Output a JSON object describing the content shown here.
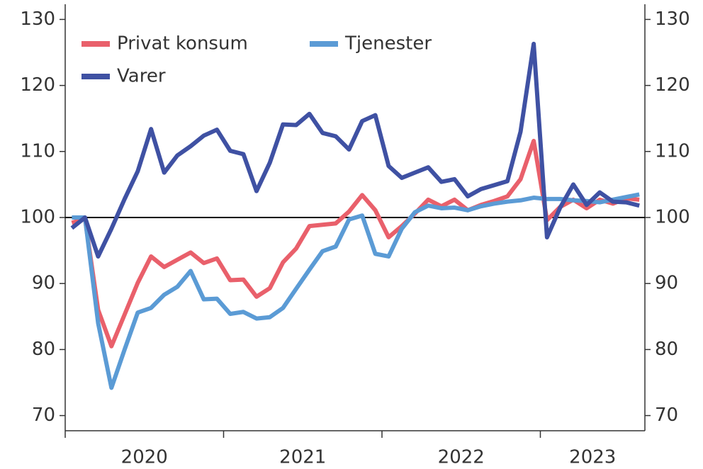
{
  "chart_data": {
    "type": "line",
    "x": [
      2020.042,
      2020.125,
      2020.208,
      2020.292,
      2020.375,
      2020.458,
      2020.542,
      2020.625,
      2020.708,
      2020.792,
      2020.875,
      2020.958,
      2021.042,
      2021.125,
      2021.208,
      2021.292,
      2021.375,
      2021.458,
      2021.542,
      2021.625,
      2021.708,
      2021.792,
      2021.875,
      2021.958,
      2022.042,
      2022.125,
      2022.208,
      2022.292,
      2022.375,
      2022.458,
      2022.542,
      2022.625,
      2022.708,
      2022.792,
      2022.875,
      2022.958,
      2023.042,
      2023.125,
      2023.208,
      2023.292,
      2023.375,
      2023.458,
      2023.542,
      2023.625
    ],
    "series": [
      {
        "name": "Privat konsum",
        "color": "#e9606b",
        "values": [
          99.2,
          99.8,
          86,
          80.5,
          85.3,
          90.1,
          94.1,
          92.5,
          93.6,
          94.7,
          93.1,
          93.8,
          90.5,
          90.6,
          88,
          89.3,
          93.2,
          95.3,
          98.7,
          98.9,
          99.1,
          100.9,
          103.4,
          101.1,
          97,
          98.7,
          100.6,
          102.7,
          101.7,
          102.7,
          101.1,
          101.9,
          102.5,
          103.2,
          105.8,
          111.6,
          99.6,
          101.6,
          102.7,
          101.4,
          102.7,
          102.1,
          102.9,
          102.7
        ]
      },
      {
        "name": "Tjenester",
        "color": "#5b9bd5",
        "values": [
          100,
          100,
          84,
          74.2,
          80,
          85.6,
          86.3,
          88.3,
          89.5,
          91.9,
          87.6,
          87.7,
          85.4,
          85.7,
          84.7,
          84.9,
          86.3,
          89.2,
          92.1,
          94.9,
          95.6,
          99.7,
          100.3,
          94.5,
          94.1,
          98.3,
          100.8,
          101.8,
          101.4,
          101.5,
          101.1,
          101.7,
          102.1,
          102.4,
          102.6,
          103,
          102.8,
          102.8,
          102.6,
          102.5,
          102.3,
          102.7,
          103.1,
          103.5
        ]
      },
      {
        "name": "Varer",
        "color": "#3f51a3",
        "values": [
          98.4,
          100,
          94.1,
          98.3,
          102.8,
          107,
          113.4,
          106.8,
          109.4,
          110.8,
          112.4,
          113.3,
          110.1,
          109.6,
          104,
          108.3,
          114.1,
          114,
          115.7,
          112.8,
          112.3,
          110.3,
          114.6,
          115.5,
          107.8,
          106,
          106.8,
          107.6,
          105.4,
          105.8,
          103.2,
          104.3,
          104.9,
          105.5,
          113,
          126.3,
          97,
          101.5,
          105,
          101.9,
          103.8,
          102.4,
          102.3,
          101.8
        ]
      }
    ],
    "xlim": [
      2020,
      2023.66
    ],
    "xticks": [
      2020,
      2021,
      2022,
      2023
    ],
    "ylim": [
      67.7,
      132.3
    ],
    "yticks": [
      70,
      80,
      90,
      100,
      110,
      120,
      130
    ],
    "y2lim": [
      67.7,
      132.3
    ],
    "y2ticks": [
      70,
      80,
      90,
      100,
      110,
      120,
      130
    ],
    "reference_line": 100,
    "legend": "upper left"
  }
}
